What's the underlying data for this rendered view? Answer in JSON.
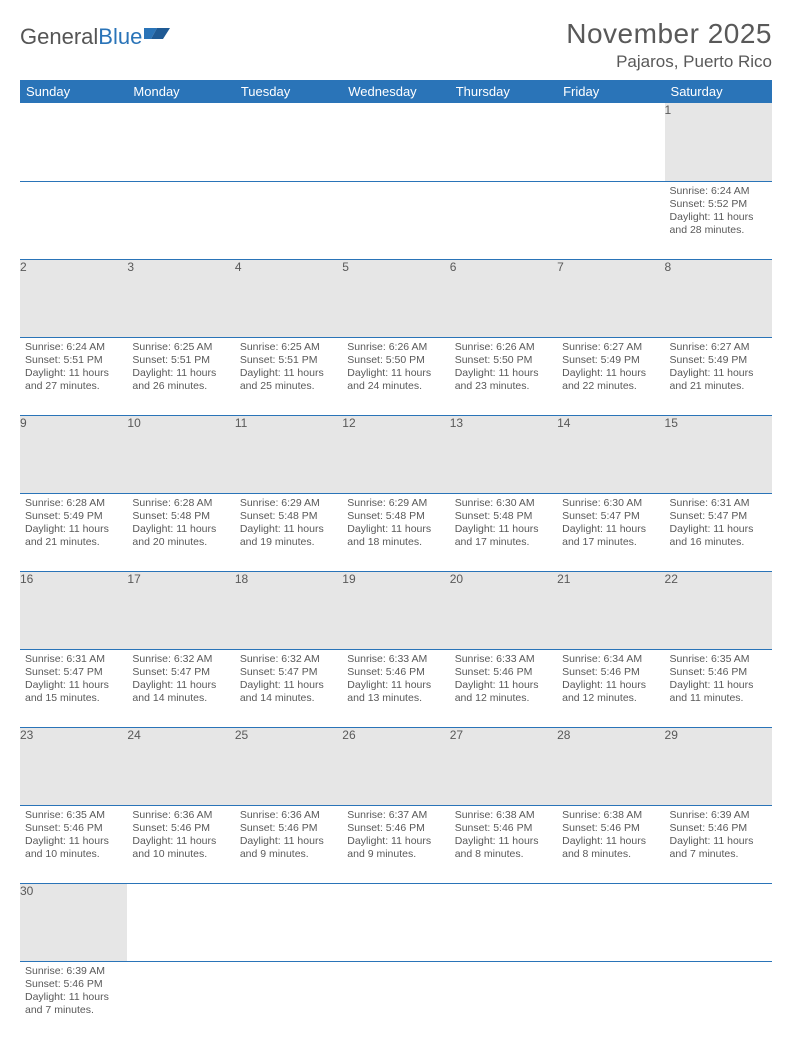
{
  "brand": {
    "part1": "General",
    "part2": "Blue"
  },
  "title": "November 2025",
  "location": "Pajaros, Puerto Rico",
  "colors": {
    "header_bg": "#2a74b8",
    "header_text": "#ffffff",
    "daynum_bg": "#e6e6e6",
    "text": "#595959",
    "rule": "#2a74b8",
    "page_bg": "#ffffff"
  },
  "typography": {
    "title_fontsize": 28,
    "location_fontsize": 17,
    "weekday_fontsize": 13,
    "daynum_fontsize": 12,
    "detail_fontsize": 10.5
  },
  "weekdays": [
    "Sunday",
    "Monday",
    "Tuesday",
    "Wednesday",
    "Thursday",
    "Friday",
    "Saturday"
  ],
  "weeks": [
    [
      null,
      null,
      null,
      null,
      null,
      null,
      {
        "n": "1",
        "sr": "6:24 AM",
        "ss": "5:52 PM",
        "dl": "11 hours and 28 minutes."
      }
    ],
    [
      {
        "n": "2",
        "sr": "6:24 AM",
        "ss": "5:51 PM",
        "dl": "11 hours and 27 minutes."
      },
      {
        "n": "3",
        "sr": "6:25 AM",
        "ss": "5:51 PM",
        "dl": "11 hours and 26 minutes."
      },
      {
        "n": "4",
        "sr": "6:25 AM",
        "ss": "5:51 PM",
        "dl": "11 hours and 25 minutes."
      },
      {
        "n": "5",
        "sr": "6:26 AM",
        "ss": "5:50 PM",
        "dl": "11 hours and 24 minutes."
      },
      {
        "n": "6",
        "sr": "6:26 AM",
        "ss": "5:50 PM",
        "dl": "11 hours and 23 minutes."
      },
      {
        "n": "7",
        "sr": "6:27 AM",
        "ss": "5:49 PM",
        "dl": "11 hours and 22 minutes."
      },
      {
        "n": "8",
        "sr": "6:27 AM",
        "ss": "5:49 PM",
        "dl": "11 hours and 21 minutes."
      }
    ],
    [
      {
        "n": "9",
        "sr": "6:28 AM",
        "ss": "5:49 PM",
        "dl": "11 hours and 21 minutes."
      },
      {
        "n": "10",
        "sr": "6:28 AM",
        "ss": "5:48 PM",
        "dl": "11 hours and 20 minutes."
      },
      {
        "n": "11",
        "sr": "6:29 AM",
        "ss": "5:48 PM",
        "dl": "11 hours and 19 minutes."
      },
      {
        "n": "12",
        "sr": "6:29 AM",
        "ss": "5:48 PM",
        "dl": "11 hours and 18 minutes."
      },
      {
        "n": "13",
        "sr": "6:30 AM",
        "ss": "5:48 PM",
        "dl": "11 hours and 17 minutes."
      },
      {
        "n": "14",
        "sr": "6:30 AM",
        "ss": "5:47 PM",
        "dl": "11 hours and 17 minutes."
      },
      {
        "n": "15",
        "sr": "6:31 AM",
        "ss": "5:47 PM",
        "dl": "11 hours and 16 minutes."
      }
    ],
    [
      {
        "n": "16",
        "sr": "6:31 AM",
        "ss": "5:47 PM",
        "dl": "11 hours and 15 minutes."
      },
      {
        "n": "17",
        "sr": "6:32 AM",
        "ss": "5:47 PM",
        "dl": "11 hours and 14 minutes."
      },
      {
        "n": "18",
        "sr": "6:32 AM",
        "ss": "5:47 PM",
        "dl": "11 hours and 14 minutes."
      },
      {
        "n": "19",
        "sr": "6:33 AM",
        "ss": "5:46 PM",
        "dl": "11 hours and 13 minutes."
      },
      {
        "n": "20",
        "sr": "6:33 AM",
        "ss": "5:46 PM",
        "dl": "11 hours and 12 minutes."
      },
      {
        "n": "21",
        "sr": "6:34 AM",
        "ss": "5:46 PM",
        "dl": "11 hours and 12 minutes."
      },
      {
        "n": "22",
        "sr": "6:35 AM",
        "ss": "5:46 PM",
        "dl": "11 hours and 11 minutes."
      }
    ],
    [
      {
        "n": "23",
        "sr": "6:35 AM",
        "ss": "5:46 PM",
        "dl": "11 hours and 10 minutes."
      },
      {
        "n": "24",
        "sr": "6:36 AM",
        "ss": "5:46 PM",
        "dl": "11 hours and 10 minutes."
      },
      {
        "n": "25",
        "sr": "6:36 AM",
        "ss": "5:46 PM",
        "dl": "11 hours and 9 minutes."
      },
      {
        "n": "26",
        "sr": "6:37 AM",
        "ss": "5:46 PM",
        "dl": "11 hours and 9 minutes."
      },
      {
        "n": "27",
        "sr": "6:38 AM",
        "ss": "5:46 PM",
        "dl": "11 hours and 8 minutes."
      },
      {
        "n": "28",
        "sr": "6:38 AM",
        "ss": "5:46 PM",
        "dl": "11 hours and 8 minutes."
      },
      {
        "n": "29",
        "sr": "6:39 AM",
        "ss": "5:46 PM",
        "dl": "11 hours and 7 minutes."
      }
    ],
    [
      {
        "n": "30",
        "sr": "6:39 AM",
        "ss": "5:46 PM",
        "dl": "11 hours and 7 minutes."
      },
      null,
      null,
      null,
      null,
      null,
      null
    ]
  ],
  "labels": {
    "sunrise": "Sunrise:",
    "sunset": "Sunset:",
    "daylight": "Daylight:"
  }
}
